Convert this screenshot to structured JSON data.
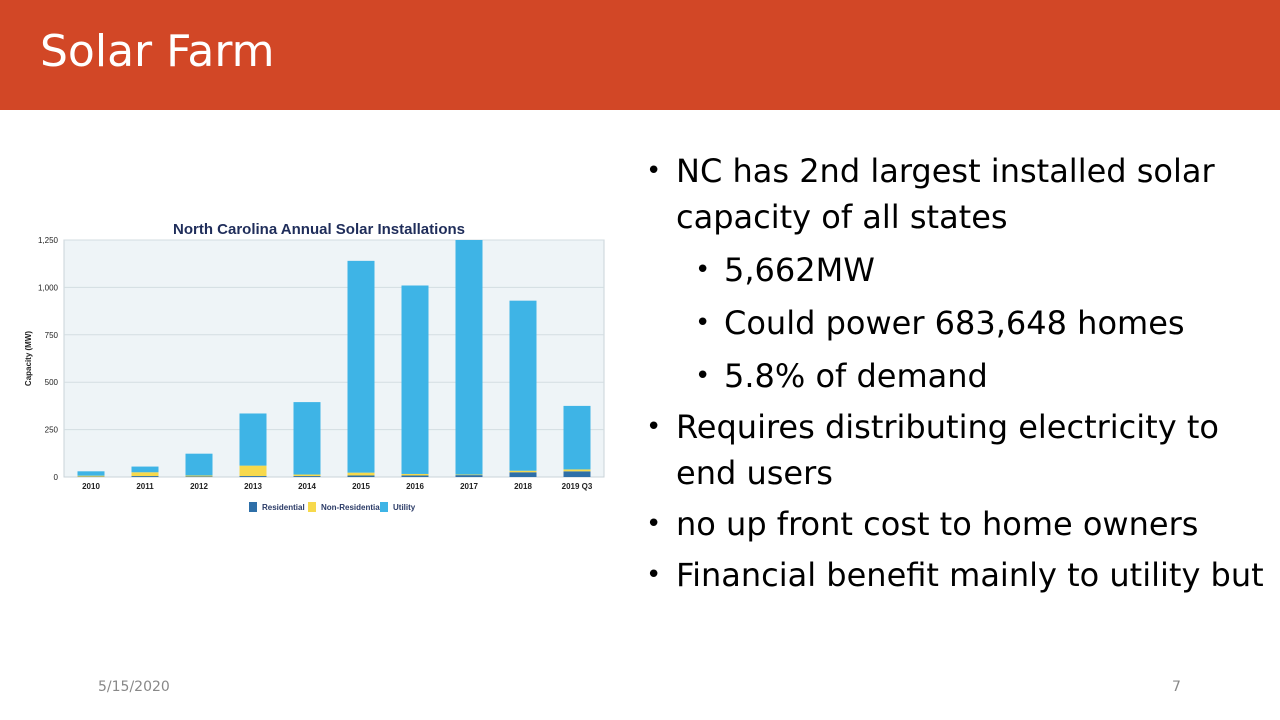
{
  "slide": {
    "title": "Solar Farm",
    "date": "5/15/2020",
    "page_number": "7"
  },
  "bullets": [
    {
      "level": 1,
      "text": "NC has 2nd largest installed solar capacity of all states"
    },
    {
      "level": 2,
      "text": "5,662MW"
    },
    {
      "level": 2,
      "text": "Could power 683,648 homes"
    },
    {
      "level": 2,
      "text": "5.8% of demand"
    },
    {
      "level": 1,
      "text": "Requires distributing electricity to end users"
    },
    {
      "level": 1,
      "text": "no up front cost to home owners"
    },
    {
      "level": 1,
      "text": "Financial benefit mainly to utility but"
    }
  ],
  "chart_data": {
    "type": "bar",
    "stacked": true,
    "title": "North Carolina Annual Solar Installations",
    "xlabel": "",
    "ylabel": "Capacity (MW)",
    "ylim": [
      0,
      1250
    ],
    "yticks": [
      0,
      250,
      500,
      750,
      1000,
      1250
    ],
    "ytick_labels": [
      "0",
      "250",
      "500",
      "750",
      "1,000",
      "1,250"
    ],
    "grid": true,
    "legend_position": "bottom",
    "categories": [
      "2010",
      "2011",
      "2012",
      "2013",
      "2014",
      "2015",
      "2016",
      "2017",
      "2018",
      "2019 Q3"
    ],
    "series": [
      {
        "name": "Residential",
        "color": "#2e6fa8",
        "values": [
          2,
          5,
          3,
          5,
          5,
          8,
          8,
          10,
          25,
          30
        ]
      },
      {
        "name": "Non-Residential",
        "color": "#f7d94c",
        "values": [
          5,
          20,
          5,
          55,
          8,
          15,
          8,
          3,
          8,
          10
        ]
      },
      {
        "name": "Utility",
        "color": "#3eb4e6",
        "values": [
          23,
          30,
          115,
          275,
          382,
          1117,
          994,
          1237,
          897,
          335
        ]
      }
    ]
  }
}
